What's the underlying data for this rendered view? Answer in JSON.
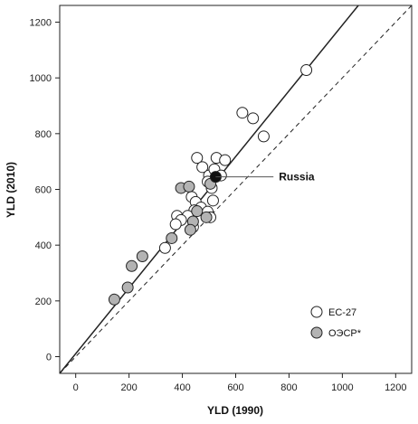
{
  "chart_data": {
    "type": "scatter",
    "xlabel": "YLD (1990)",
    "ylabel": "YLD (2010)",
    "xlim": [
      -60,
      1260
    ],
    "ylim": [
      -60,
      1260
    ],
    "xticks": [
      0,
      200,
      400,
      600,
      800,
      1000,
      1200
    ],
    "yticks": [
      0,
      200,
      400,
      600,
      800,
      1000,
      1200
    ],
    "grid": false,
    "legend_position": "bottom-right",
    "colors": {
      "ec27": "#ffffff",
      "oecd": "#b3b3b3",
      "russia": "#111111",
      "stroke": "#222222"
    },
    "series": [
      {
        "name": "ЕС-27",
        "marker": "open-circle",
        "points": [
          [
            865,
            1028
          ],
          [
            625,
            875
          ],
          [
            665,
            855
          ],
          [
            705,
            790
          ],
          [
            455,
            713
          ],
          [
            528,
            713
          ],
          [
            560,
            705
          ],
          [
            475,
            680
          ],
          [
            500,
            650
          ],
          [
            520,
            672
          ],
          [
            545,
            650
          ],
          [
            495,
            628
          ],
          [
            510,
            605
          ],
          [
            435,
            573
          ],
          [
            450,
            555
          ],
          [
            515,
            560
          ],
          [
            470,
            535
          ],
          [
            445,
            525
          ],
          [
            420,
            505
          ],
          [
            495,
            520
          ],
          [
            505,
            500
          ],
          [
            380,
            505
          ],
          [
            395,
            490
          ],
          [
            375,
            475
          ],
          [
            440,
            465
          ],
          [
            335,
            390
          ]
        ]
      },
      {
        "name": "ОЭСР*",
        "marker": "filled-circle",
        "points": [
          [
            395,
            605
          ],
          [
            425,
            610
          ],
          [
            505,
            620
          ],
          [
            440,
            485
          ],
          [
            455,
            522
          ],
          [
            490,
            500
          ],
          [
            430,
            455
          ],
          [
            360,
            425
          ],
          [
            250,
            360
          ],
          [
            210,
            325
          ],
          [
            195,
            248
          ],
          [
            145,
            205
          ]
        ]
      },
      {
        "name": "Russia",
        "marker": "black-circle",
        "points": [
          [
            525,
            645
          ]
        ]
      }
    ],
    "lines": [
      {
        "kind": "fit",
        "style": "solid",
        "from": [
          -60,
          -60
        ],
        "to": [
          1060,
          1260
        ]
      },
      {
        "kind": "identity",
        "style": "dashed",
        "from": [
          -60,
          -60
        ],
        "to": [
          1260,
          1260
        ]
      }
    ],
    "annotation": {
      "text": "Russia",
      "label_x": 762,
      "label_y": 645
    },
    "legend": [
      "ЕС-27",
      "ОЭСР*"
    ]
  }
}
